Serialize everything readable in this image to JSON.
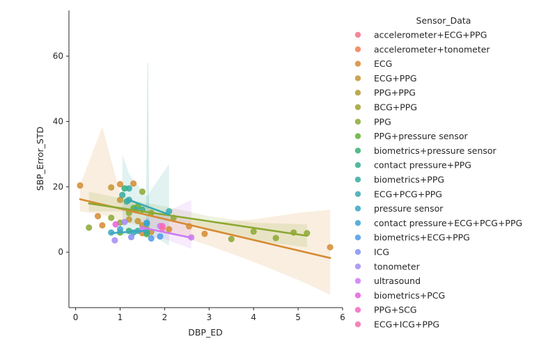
{
  "chart_data": {
    "type": "scatter",
    "title": "",
    "xlabel": "DBP_ED",
    "ylabel": "SBP_Error_STD",
    "xlim": [
      -0.15,
      6.0
    ],
    "ylim": [
      -17,
      74
    ],
    "xticks": [
      0,
      1,
      2,
      3,
      4,
      5,
      6
    ],
    "yticks": [
      0,
      20,
      40,
      60
    ],
    "grid": false,
    "legend": {
      "title": "Sensor_Data",
      "placement": "right"
    },
    "series": [
      {
        "name": "accelerometer+ECG+PPG",
        "color": "#f77189",
        "points": []
      },
      {
        "name": "accelerometer+tonometer",
        "color": "#f27c51",
        "points": []
      },
      {
        "name": "ECG",
        "color": "#d68b32",
        "points": [
          [
            0.1,
            20.4
          ],
          [
            0.5,
            11.0
          ],
          [
            0.6,
            8.2
          ],
          [
            1.0,
            20.8
          ],
          [
            1.3,
            21.0
          ],
          [
            1.5,
            5.8
          ],
          [
            2.1,
            7.0
          ],
          [
            2.55,
            7.9
          ],
          [
            2.9,
            5.6
          ],
          [
            5.72,
            1.5
          ]
        ],
        "fit": {
          "x": [
            0.1,
            5.72
          ],
          "y": [
            16.2,
            -1.8
          ]
        },
        "band": {
          "upper": [
            [
              0.1,
              20.5
            ],
            [
              0.6,
              38.4
            ],
            [
              1.0,
              18.0
            ],
            [
              2.0,
              11.0
            ],
            [
              3.0,
              9.0
            ],
            [
              4.0,
              10.0
            ],
            [
              5.0,
              12.0
            ],
            [
              5.72,
              13.0
            ]
          ],
          "lower": [
            [
              0.1,
              12.5
            ],
            [
              0.6,
              11.5
            ],
            [
              1.0,
              9.5
            ],
            [
              2.0,
              6.5
            ],
            [
              3.0,
              2.0
            ],
            [
              4.0,
              -3.0
            ],
            [
              5.0,
              -8.5
            ],
            [
              5.72,
              -13.0
            ]
          ]
        }
      },
      {
        "name": "ECG+PPG",
        "color": "#c39532",
        "points": [
          [
            0.8,
            19.8
          ],
          [
            1.0,
            16.0
          ],
          [
            1.2,
            10.0
          ],
          [
            1.4,
            9.5
          ],
          [
            1.5,
            8.2
          ],
          [
            1.6,
            7.0
          ],
          [
            1.7,
            6.2
          ]
        ]
      },
      {
        "name": "PPG+PPG",
        "color": "#b29c31",
        "points": []
      },
      {
        "name": "BCG+PPG",
        "color": "#a0a132",
        "points": []
      },
      {
        "name": "PPG",
        "color": "#8ca832",
        "points": [
          [
            0.3,
            7.5
          ],
          [
            0.8,
            10.5
          ],
          [
            1.0,
            9.0
          ],
          [
            1.2,
            12.0
          ],
          [
            1.5,
            18.5
          ],
          [
            1.7,
            12.0
          ],
          [
            2.2,
            10.5
          ],
          [
            3.5,
            4.0
          ],
          [
            4.0,
            6.3
          ],
          [
            4.5,
            4.3
          ],
          [
            4.9,
            6.0
          ],
          [
            5.2,
            5.8
          ]
        ],
        "fit": {
          "x": [
            0.3,
            5.2
          ],
          "y": [
            14.9,
            5.0
          ]
        },
        "band": {
          "upper": [
            [
              0.3,
              18.5
            ],
            [
              1.0,
              16.5
            ],
            [
              2.0,
              14.0
            ],
            [
              3.0,
              11.0
            ],
            [
              4.0,
              9.0
            ],
            [
              5.2,
              8.5
            ]
          ],
          "lower": [
            [
              0.3,
              12.5
            ],
            [
              1.0,
              12.5
            ],
            [
              2.0,
              10.5
            ],
            [
              3.0,
              6.5
            ],
            [
              4.0,
              3.5
            ],
            [
              5.2,
              1.5
            ]
          ]
        }
      },
      {
        "name": "PPG+pressure sensor",
        "color": "#5fb132",
        "points": [
          [
            1.0,
            6.0
          ],
          [
            1.3,
            13.5
          ],
          [
            1.4,
            14.0
          ],
          [
            1.6,
            5.5
          ]
        ]
      },
      {
        "name": "biometrics+pressure sensor",
        "color": "#33b071",
        "points": [
          [
            1.1,
            19.5
          ],
          [
            1.2,
            6.5
          ]
        ]
      },
      {
        "name": "contact pressure+PPG",
        "color": "#35ad8d",
        "points": [
          [
            1.15,
            15.5
          ],
          [
            1.5,
            13.0
          ]
        ]
      },
      {
        "name": "biometrics+PPG",
        "color": "#36aba1",
        "points": [
          [
            1.05,
            17.5
          ],
          [
            1.2,
            19.5
          ],
          [
            1.4,
            6.5
          ],
          [
            1.6,
            6.0
          ]
        ],
        "band": {
          "upper": [
            [
              1.05,
              30.0
            ],
            [
              1.2,
              24.0
            ],
            [
              1.6,
              17.0
            ],
            [
              2.1,
              27.0
            ]
          ],
          "lower": [
            [
              1.05,
              5.0
            ],
            [
              1.2,
              5.5
            ],
            [
              1.6,
              6.0
            ],
            [
              2.1,
              2.0
            ]
          ]
        }
      },
      {
        "name": "ECG+PCG+PPG",
        "color": "#38a9b2",
        "points": [
          [
            1.2,
            16.0
          ],
          [
            1.35,
            13.0
          ],
          [
            2.1,
            12.5
          ]
        ],
        "fit": {
          "x": [
            1.15,
            2.1
          ],
          "y": [
            16.2,
            11.5
          ]
        }
      },
      {
        "name": "pressure sensor",
        "color": "#3aa7c1",
        "points": [
          [
            0.8,
            6.0
          ],
          [
            1.3,
            6.0
          ],
          [
            1.6,
            8.7
          ]
        ],
        "fit": {
          "x": [
            0.8,
            1.6
          ],
          "y": [
            5.8,
            6.6
          ]
        }
      },
      {
        "name": "contact pressure+ECG+PCG+PPG",
        "color": "#3ba3d2",
        "points": [
          [
            1.0,
            7.0
          ],
          [
            1.6,
            9.0
          ]
        ]
      },
      {
        "name": "biometrics+ECG+PPG",
        "color": "#4c9be9",
        "points": [
          [
            1.7,
            4.2
          ],
          [
            1.9,
            4.8
          ]
        ]
      },
      {
        "name": "ICG",
        "color": "#8591f4",
        "points": [
          [
            1.25,
            4.6
          ]
        ]
      },
      {
        "name": "tonometer",
        "color": "#a48cf4",
        "points": [
          [
            0.88,
            3.6
          ],
          [
            1.1,
            9.2
          ]
        ]
      },
      {
        "name": "ultrasound",
        "color": "#cc7af4",
        "points": [
          [
            1.5,
            7.0
          ],
          [
            1.9,
            8.0
          ],
          [
            2.6,
            4.5
          ]
        ],
        "fit": {
          "x": [
            1.5,
            2.6
          ],
          "y": [
            7.5,
            4.4
          ]
        },
        "band": {
          "upper": [
            [
              1.5,
              10.0
            ],
            [
              2.0,
              12.0
            ],
            [
              2.6,
              16.0
            ]
          ],
          "lower": [
            [
              1.5,
              5.0
            ],
            [
              2.0,
              4.0
            ],
            [
              2.6,
              1.0
            ]
          ]
        }
      },
      {
        "name": "biometrics+PCG",
        "color": "#e95ede",
        "points": [
          [
            0.9,
            8.5
          ]
        ]
      },
      {
        "name": "PPG+SCG",
        "color": "#f668c2",
        "points": [
          [
            1.95,
            8.0
          ]
        ]
      },
      {
        "name": "ECG+ICG+PPG",
        "color": "#f56eab",
        "points": [
          [
            1.95,
            7.3
          ]
        ]
      }
    ],
    "spike": {
      "x": 1.62,
      "y_top": 58.0,
      "y_bottom": 5.0,
      "color": "#36aba1"
    }
  }
}
